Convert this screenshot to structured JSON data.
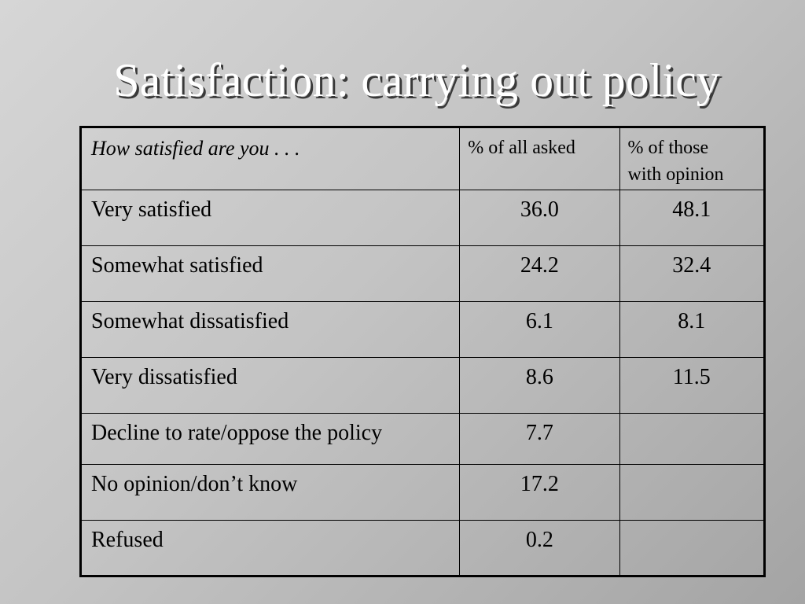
{
  "slide": {
    "title": "Satisfaction: carrying out policy"
  },
  "table": {
    "headers": {
      "question": "How satisfied are you . . .",
      "col1": "% of all asked",
      "col2_line1": "% of those",
      "col2_line2": "with opinion"
    },
    "rows": [
      {
        "label": "Very satisfied",
        "all_asked": "36.0",
        "with_opinion": "48.1"
      },
      {
        "label": "Somewhat satisfied",
        "all_asked": "24.2",
        "with_opinion": "32.4"
      },
      {
        "label": "Somewhat dissatisfied",
        "all_asked": "6.1",
        "with_opinion": "8.1"
      },
      {
        "label": "Very dissatisfied",
        "all_asked": "8.6",
        "with_opinion": "11.5"
      },
      {
        "label": "Decline to rate/oppose the policy",
        "all_asked": "7.7",
        "with_opinion": ""
      },
      {
        "label": "No opinion/don’t know",
        "all_asked": "17.2",
        "with_opinion": ""
      },
      {
        "label": "Refused",
        "all_asked": "0.2",
        "with_opinion": ""
      }
    ]
  }
}
